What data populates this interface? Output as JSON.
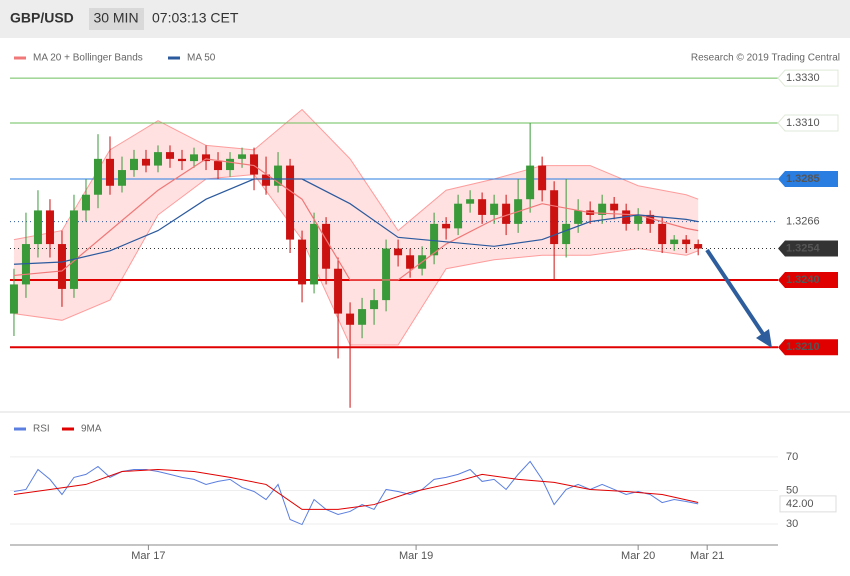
{
  "header": {
    "symbol": "GBP/USD",
    "interval": "30 MIN",
    "time": "07:03:13 CET"
  },
  "chart_data": {
    "type": "candlestick",
    "credit": "Research © 2019 Trading Central",
    "xlim": [
      -0.33,
      63.4
    ],
    "ylim": [
      1.3182,
      1.3347
    ],
    "xticks": [
      {
        "value": 11.2,
        "label": "Mar 17"
      },
      {
        "value": 33.5,
        "label": "Mar 19"
      },
      {
        "value": 52,
        "label": "Mar 20"
      },
      {
        "value": 57.75,
        "label": "Mar 21"
      }
    ],
    "up_color": "#3a9a3a",
    "down_color": "#cc1111",
    "open": [
      1.3225,
      1.3238,
      1.3256,
      1.3271,
      1.3256,
      1.3236,
      1.3271,
      1.3278,
      1.3294,
      1.3282,
      1.3289,
      1.3294,
      1.3291,
      1.3297,
      1.3294,
      1.3293,
      1.3296,
      1.3293,
      1.3289,
      1.3294,
      1.3296,
      1.3287,
      1.3282,
      1.3291,
      1.3258,
      1.3238,
      1.3265,
      1.3245,
      1.3225,
      1.322,
      1.3227,
      1.3231,
      1.3254,
      1.3251,
      1.3245,
      1.3251,
      1.3265,
      1.3263,
      1.3274,
      1.3276,
      1.3269,
      1.3274,
      1.3265,
      1.3276,
      1.3291,
      1.328,
      1.3256,
      1.3265,
      1.3271,
      1.3269,
      1.3274,
      1.3271,
      1.3265,
      1.3269,
      1.3265,
      1.3256,
      1.3258,
      1.3256
    ],
    "high": [
      1.3245,
      1.327,
      1.328,
      1.3276,
      1.3262,
      1.3278,
      1.3285,
      1.3305,
      1.3304,
      1.3295,
      1.3298,
      1.3298,
      1.33,
      1.33,
      1.3298,
      1.3299,
      1.33,
      1.3297,
      1.3297,
      1.3299,
      1.3299,
      1.3295,
      1.3297,
      1.3294,
      1.3262,
      1.327,
      1.3268,
      1.325,
      1.323,
      1.3232,
      1.3236,
      1.3258,
      1.3258,
      1.3254,
      1.3255,
      1.327,
      1.3268,
      1.3278,
      1.328,
      1.3279,
      1.3278,
      1.3278,
      1.3285,
      1.331,
      1.3295,
      1.3284,
      1.3285,
      1.3276,
      1.3275,
      1.3278,
      1.3277,
      1.3274,
      1.3272,
      1.3271,
      1.3268,
      1.326,
      1.326,
      1.3258
    ],
    "low": [
      1.3215,
      1.3232,
      1.325,
      1.325,
      1.3228,
      1.3232,
      1.3266,
      1.3272,
      1.3278,
      1.3279,
      1.3286,
      1.3288,
      1.3288,
      1.329,
      1.3289,
      1.329,
      1.3289,
      1.3285,
      1.3286,
      1.329,
      1.328,
      1.3278,
      1.3279,
      1.3252,
      1.323,
      1.3234,
      1.3238,
      1.3205,
      1.3183,
      1.3214,
      1.322,
      1.3226,
      1.3246,
      1.3241,
      1.3242,
      1.3247,
      1.3258,
      1.326,
      1.327,
      1.3265,
      1.3265,
      1.326,
      1.3261,
      1.327,
      1.3275,
      1.324,
      1.325,
      1.3261,
      1.3265,
      1.3265,
      1.3267,
      1.3262,
      1.3262,
      1.3261,
      1.3252,
      1.3253,
      1.3252,
      1.3251
    ],
    "close": [
      1.3238,
      1.3256,
      1.3271,
      1.3256,
      1.3236,
      1.3271,
      1.3278,
      1.3294,
      1.3282,
      1.3289,
      1.3294,
      1.3291,
      1.3297,
      1.3294,
      1.3293,
      1.3296,
      1.3293,
      1.3289,
      1.3294,
      1.3296,
      1.3287,
      1.3282,
      1.3291,
      1.3258,
      1.3238,
      1.3265,
      1.3245,
      1.3225,
      1.322,
      1.3227,
      1.3231,
      1.3254,
      1.3251,
      1.3245,
      1.3251,
      1.3265,
      1.3263,
      1.3274,
      1.3276,
      1.3269,
      1.3274,
      1.3265,
      1.3276,
      1.3291,
      1.328,
      1.3256,
      1.3265,
      1.3271,
      1.3269,
      1.3274,
      1.3271,
      1.3265,
      1.3269,
      1.3265,
      1.3256,
      1.3258,
      1.3256,
      1.3254
    ],
    "band_x": [
      0,
      4,
      8,
      12,
      16,
      20,
      24,
      28,
      32,
      36,
      40,
      44,
      48,
      52,
      56,
      57
    ],
    "band_color": "#ff9c9c",
    "series": [
      {
        "name": "MA 20 + Bollinger Bands",
        "color": "#f07878",
        "values": [
          1.3242,
          1.3244,
          1.3262,
          1.328,
          1.3294,
          1.3291,
          1.3276,
          1.324,
          1.324,
          1.3256,
          1.3267,
          1.3274,
          1.327,
          1.3269,
          1.3263,
          1.3262
        ]
      },
      {
        "name": "MA 50",
        "color": "#2b5a9e",
        "values": [
          1.3247,
          1.3248,
          1.3253,
          1.3262,
          1.3276,
          1.3285,
          1.3285,
          1.3274,
          1.3259,
          1.3257,
          1.3255,
          1.3258,
          1.3266,
          1.3269,
          1.3267,
          1.3266
        ]
      }
    ],
    "bb_upper": [
      1.3258,
      1.3262,
      1.3298,
      1.3311,
      1.33,
      1.3298,
      1.3316,
      1.3294,
      1.3262,
      1.328,
      1.3285,
      1.3291,
      1.3291,
      1.3282,
      1.3278,
      1.3276
    ],
    "bb_lower": [
      1.3225,
      1.3222,
      1.3231,
      1.3269,
      1.3285,
      1.3287,
      1.3258,
      1.3211,
      1.3211,
      1.3245,
      1.3249,
      1.3251,
      1.3251,
      1.3254,
      1.3251,
      1.3253
    ],
    "levels": [
      {
        "value": 1.333,
        "label": "1.3330",
        "color": "#6cbf5c",
        "line": "solid",
        "box": "outline"
      },
      {
        "value": 1.331,
        "label": "1.3310",
        "color": "#6cbf5c",
        "line": "solid",
        "box": "outline"
      },
      {
        "value": 1.3285,
        "label": "1.3285",
        "color": "#2a7de1",
        "line": "solid",
        "box": "filled"
      },
      {
        "value": 1.3266,
        "label": "1.3266",
        "color": "#2b5a9e",
        "line": "dotted",
        "box": "plain"
      },
      {
        "value": 1.3254,
        "label": "1.3254",
        "color": "#333333",
        "line": "dotted",
        "box": "filled"
      },
      {
        "value": 1.324,
        "label": "1.3240",
        "color": "#e00000",
        "line": "solid",
        "box": "filled"
      },
      {
        "value": 1.321,
        "label": "1.3210",
        "color": "#e00000",
        "line": "solid",
        "box": "filled"
      }
    ],
    "rsi": {
      "ylim": [
        17.5,
        92
      ],
      "yticks": [
        30,
        50,
        70
      ],
      "current": {
        "value": 42,
        "label": "42.00"
      },
      "series": [
        {
          "name": "RSI",
          "color": "#5b7fe0",
          "values": [
            49.4,
            50.6,
            62.5,
            56.6,
            47.6,
            57.8,
            59.6,
            64.3,
            57.8,
            61.3,
            62.5,
            62.5,
            61.3,
            59.6,
            57.8,
            56.6,
            53.6,
            55.4,
            56.6,
            51.8,
            49.4,
            44.6,
            53.6,
            32.7,
            29.7,
            44.6,
            38.7,
            35.7,
            37.5,
            41.6,
            38.7,
            50.6,
            49.4,
            47.6,
            50.6,
            56.6,
            57.8,
            59.6,
            62.5,
            55.4,
            56.6,
            50.6,
            59.6,
            67.3,
            56.6,
            41.6,
            50.6,
            53.6,
            50.6,
            53.6,
            50.6,
            47.6,
            49.4,
            47.6,
            42.8,
            44.6,
            43.4,
            42.0
          ]
        },
        {
          "name": "9MA",
          "color": "#e00000",
          "x": [
            0,
            3,
            6,
            9,
            12,
            15,
            18,
            21,
            24,
            27,
            30,
            33,
            36,
            39,
            42,
            45,
            48,
            51,
            54,
            57
          ],
          "values": [
            47.6,
            50.6,
            53.6,
            61.3,
            62.5,
            61.3,
            57.8,
            53.6,
            38.7,
            38.7,
            41.6,
            48.8,
            53.6,
            59.6,
            56.6,
            54.8,
            50.6,
            49.4,
            47.6,
            42.8
          ]
        }
      ]
    }
  }
}
